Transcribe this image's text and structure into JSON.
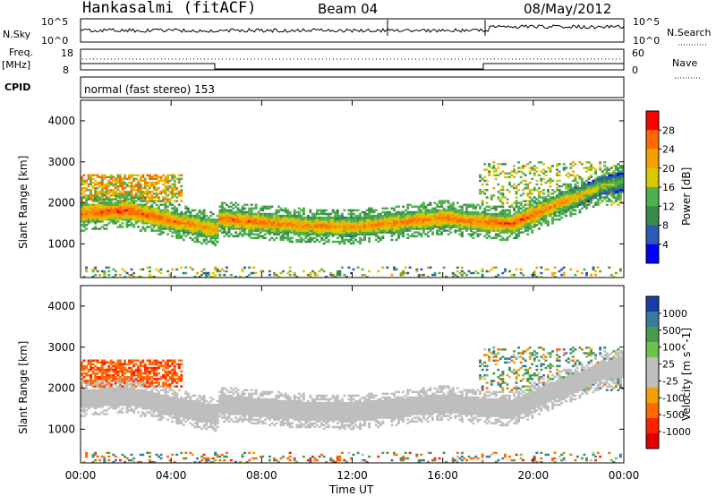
{
  "header": {
    "station": "Hankasalmi (fitACF)",
    "beam": "Beam 04",
    "date": "08/May/2012"
  },
  "top_panels": {
    "nsky_label": "N.Sky",
    "nsky_ticks": [
      "10^5",
      "10^0"
    ],
    "nsearch_label": "N.Search",
    "nsearch_ticks": [
      "10^5",
      "10^0"
    ],
    "freq_label": "Freq.",
    "freq_unit": "[MHz]",
    "freq_ticks": [
      "18",
      "8"
    ],
    "nave_label": "Nave",
    "nave_ticks": [
      "60",
      "0"
    ],
    "cpid_label": "CPID",
    "cpid_value": "normal (fast stereo) 153"
  },
  "colors": {
    "power_scale": [
      "#0000ff",
      "#2b5bb4",
      "#3a8a4a",
      "#4fb04f",
      "#d8c800",
      "#f5a000",
      "#ff6a00",
      "#ff0000"
    ],
    "velocity_scale": [
      "#1a3aa8",
      "#3a7a9a",
      "#4a9a4a",
      "#6cc24a",
      "#bebebe",
      "#bebebe",
      "#f0a000",
      "#ff6a00",
      "#ff2000",
      "#e00000"
    ],
    "ground_scatter": "#bebebe"
  },
  "chart_data": [
    {
      "type": "heatmap",
      "title": "",
      "xlabel": "Time UT",
      "ylabel": "Slant Range [km]",
      "colorbar_label": "Power [dB]",
      "colorbar_ticks": [
        "28",
        "24",
        "20",
        "16",
        "12",
        "8",
        "4"
      ],
      "x_ticks": [
        "00:00",
        "04:00",
        "08:00",
        "12:00",
        "16:00",
        "20:00",
        "00:00"
      ],
      "y_ticks": [
        "4000",
        "3000",
        "2000",
        "1000"
      ],
      "xlim_hours": [
        0,
        24
      ],
      "ylim_km": [
        180,
        4500
      ],
      "band_profile": {
        "hours": [
          0,
          2,
          4,
          6,
          6.1,
          8,
          10,
          12,
          14,
          16,
          18,
          19,
          20,
          21,
          22,
          23,
          24
        ],
        "center_km": [
          1720,
          1800,
          1550,
          1330,
          1600,
          1500,
          1420,
          1390,
          1500,
          1620,
          1500,
          1480,
          1700,
          1950,
          2150,
          2400,
          2500
        ],
        "peak_dB": [
          26,
          28,
          26,
          24,
          26,
          26,
          25,
          24,
          25,
          26,
          26,
          27,
          27,
          24,
          22,
          18,
          16
        ]
      }
    },
    {
      "type": "heatmap",
      "title": "",
      "xlabel": "Time UT",
      "ylabel": "Slant Range [km]",
      "colorbar_label": "Velocity [m s^-1]",
      "colorbar_ticks": [
        "1000",
        "500",
        "100",
        "25",
        "-25",
        "-100",
        "-500",
        "-1000"
      ],
      "x_ticks": [
        "00:00",
        "04:00",
        "08:00",
        "12:00",
        "16:00",
        "20:00",
        "00:00"
      ],
      "y_ticks": [
        "4000",
        "3000",
        "2000",
        "1000"
      ],
      "xlim_hours": [
        0,
        24
      ],
      "ylim_km": [
        180,
        4500
      ],
      "velocity_range": [
        -1000,
        1000
      ]
    }
  ]
}
